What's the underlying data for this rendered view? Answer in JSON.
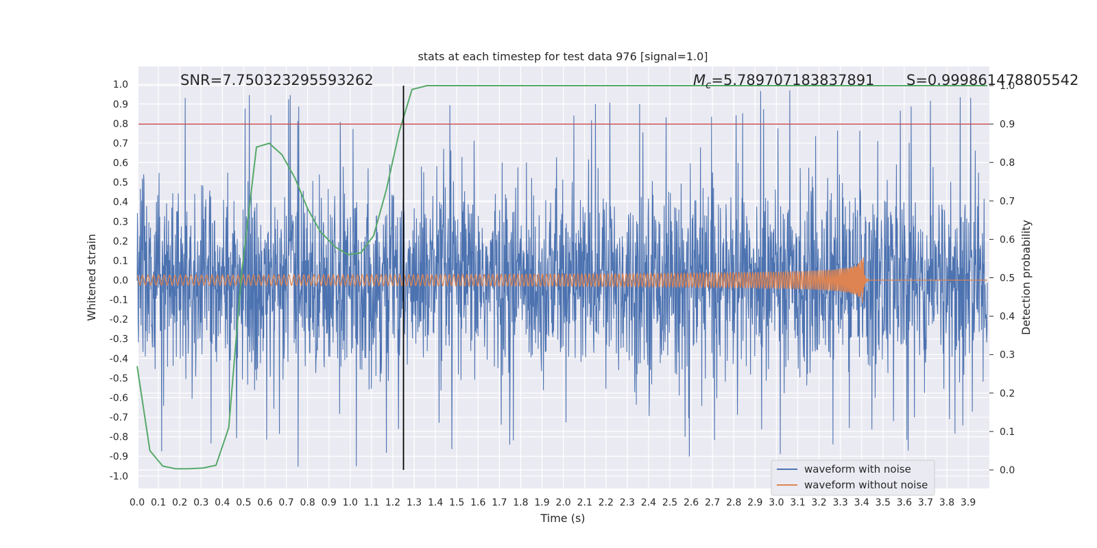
{
  "chart_data": {
    "type": "line",
    "title": "stats at each timestep for test data 976 [signal=1.0]",
    "xlabel": "Time (s)",
    "ylabel_left": "Whitened strain",
    "ylabel_right": "Detection probability",
    "xlim": [
      0.0,
      3.99
    ],
    "ylim_left": [
      -1.1,
      1.1
    ],
    "ylim_right": [
      -0.05,
      1.0
    ],
    "x_ticks": [
      "0.0",
      "0.1",
      "0.2",
      "0.3",
      "0.4",
      "0.5",
      "0.6",
      "0.7",
      "0.8",
      "0.9",
      "1.0",
      "1.1",
      "1.2",
      "1.3",
      "1.4",
      "1.5",
      "1.6",
      "1.7",
      "1.8",
      "1.9",
      "2.0",
      "2.1",
      "2.2",
      "2.3",
      "2.4",
      "2.5",
      "2.6",
      "2.7",
      "2.8",
      "2.9",
      "3.0",
      "3.1",
      "3.2",
      "3.3",
      "3.4",
      "3.5",
      "3.6",
      "3.7",
      "3.8",
      "3.9"
    ],
    "y_ticks_left": [
      "1.0",
      "0.9",
      "0.8",
      "0.7",
      "0.6",
      "0.5",
      "0.4",
      "0.3",
      "0.2",
      "0.1",
      "0.0",
      "-0.1",
      "-0.2",
      "-0.3",
      "-0.4",
      "-0.5",
      "-0.6",
      "-0.7",
      "-0.8",
      "-0.9",
      "-1.0"
    ],
    "y_ticks_right": [
      "1.0",
      "0.9",
      "0.8",
      "0.7",
      "0.6",
      "0.5",
      "0.4",
      "0.3",
      "0.2",
      "0.1",
      "0.0"
    ],
    "annotations": {
      "snr": "SNR=7.750323295593262",
      "mc_symbol": "M",
      "mc_sub": "c",
      "mc_value": "=5.789707183837891",
      "s_value": "S=0.999861478805542"
    },
    "threshold": {
      "value": 0.9,
      "axis": "right",
      "color": "#c44e52"
    },
    "vertical_marker": {
      "x": 1.25,
      "color": "#000000"
    },
    "series": [
      {
        "name": "waveform with noise",
        "axis": "left",
        "color": "#4c72b0",
        "description_range": [
          -1.0,
          1.0
        ]
      },
      {
        "name": "waveform without noise",
        "axis": "left",
        "color": "#dd8452",
        "merger_time": 3.41,
        "peak_amplitude": 0.2
      },
      {
        "name": "detection probability",
        "axis": "right",
        "color": "#55a868",
        "x": [
          0.0,
          0.06,
          0.12,
          0.18,
          0.24,
          0.31,
          0.37,
          0.43,
          0.49,
          0.56,
          0.62,
          0.68,
          0.74,
          0.8,
          0.86,
          0.93,
          0.99,
          1.05,
          1.11,
          1.17,
          1.23,
          1.29,
          1.36,
          1.42,
          1.5,
          2.0,
          2.5,
          3.0,
          3.5,
          3.99
        ],
        "values": [
          0.27,
          0.05,
          0.01,
          0.003,
          0.003,
          0.005,
          0.012,
          0.11,
          0.51,
          0.84,
          0.85,
          0.82,
          0.76,
          0.68,
          0.62,
          0.58,
          0.56,
          0.565,
          0.61,
          0.73,
          0.88,
          0.99,
          1.0,
          1.0,
          1.0,
          1.0,
          1.0,
          1.0,
          1.0,
          1.0
        ]
      }
    ],
    "legend": {
      "position": "lower-right",
      "entries": [
        {
          "label": "waveform with noise",
          "color": "#4c72b0"
        },
        {
          "label": "waveform without noise",
          "color": "#dd8452"
        }
      ]
    }
  }
}
